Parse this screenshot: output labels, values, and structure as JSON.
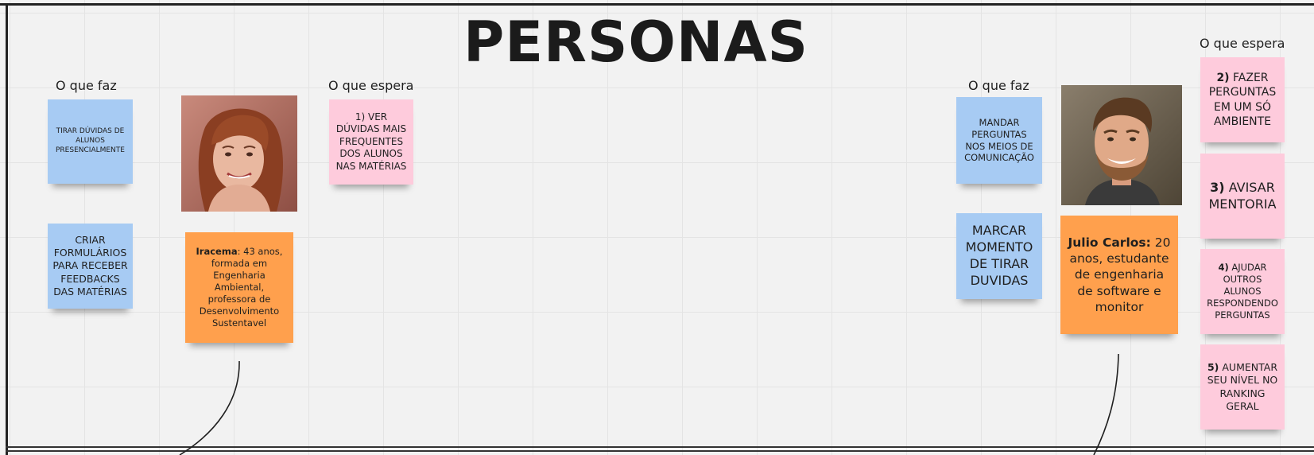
{
  "board": {
    "title": "PERSONAS"
  },
  "persona1": {
    "does_label": "O que faz",
    "expects_label": "O que espera",
    "does_notes": [
      "TIRAR DÚVIDAS DE ALUNOS PRESENCIALMENTE",
      "CRIAR FORMULÁRIOS PARA RECEBER FEEDBACKS DAS MATÉRIAS"
    ],
    "expects_notes": [
      "1) VER DÚVIDAS MAIS FREQUENTES DOS ALUNOS NAS MATÉRIAS"
    ],
    "name": "Iracema",
    "description": ": 43 anos, formada em Engenharia Ambiental, professora de Desenvolvimento Sustentavel",
    "photo_icon": "woman-portrait"
  },
  "persona2": {
    "does_label": "O que faz",
    "expects_label": "O que espera",
    "does_notes": [
      "MANDAR PERGUNTAS NOS MEIOS DE COMUNICAÇÃO",
      "MARCAR MOMENTO DE TIRAR DUVIDAS"
    ],
    "expects_notes": [
      {
        "num": "2)",
        "text": " FAZER PERGUNTAS EM UM SÓ AMBIENTE"
      },
      {
        "num": "3)",
        "text": " AVISAR MENTORIA"
      },
      {
        "num": "4)",
        "text": " AJUDAR OUTROS ALUNOS RESPONDENDO PERGUNTAS"
      },
      {
        "num": "5)",
        "text": " AUMENTAR SEU NÍVEL NO RANKING GERAL"
      }
    ],
    "name": "Julio Carlos:",
    "description": " 20 anos, estudante de engenharia de software e monitor",
    "photo_icon": "man-portrait"
  },
  "colors": {
    "blue_note": "#a7cbf3",
    "pink_note": "#fecbdc",
    "orange_note": "#ffa04d",
    "frame": "#222222"
  }
}
